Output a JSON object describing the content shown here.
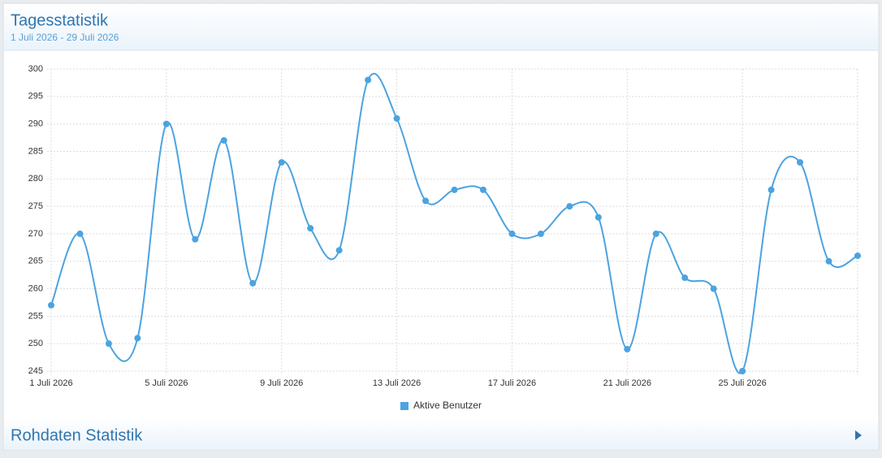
{
  "header": {
    "title": "Tagesstatistik",
    "subtitle": "1 Juli 2026 - 29 Juli 2026"
  },
  "chart_data": {
    "type": "line",
    "categories": [
      "1 Juli 2026",
      null,
      null,
      null,
      "5 Juli 2026",
      null,
      null,
      null,
      "9 Juli 2026",
      null,
      null,
      null,
      "13 Juli 2026",
      null,
      null,
      null,
      "17 Juli 2026",
      null,
      null,
      null,
      "21 Juli 2026",
      null,
      null,
      null,
      "25 Juli 2026",
      null,
      null,
      null,
      null
    ],
    "series": [
      {
        "name": "Aktive Benutzer",
        "color": "#4ba3e0",
        "values": [
          257,
          270,
          250,
          251,
          290,
          269,
          287,
          261,
          283,
          271,
          267,
          298,
          291,
          276,
          278,
          278,
          270,
          270,
          275,
          273,
          249,
          270,
          262,
          260,
          245,
          278,
          283,
          265,
          266
        ]
      }
    ],
    "ylim": [
      245,
      300
    ],
    "yticks": [
      245,
      250,
      255,
      260,
      265,
      270,
      275,
      280,
      285,
      290,
      295,
      300
    ],
    "grid": true,
    "legend": "bottom"
  },
  "footer": {
    "title": "Rohdaten Statistik"
  }
}
